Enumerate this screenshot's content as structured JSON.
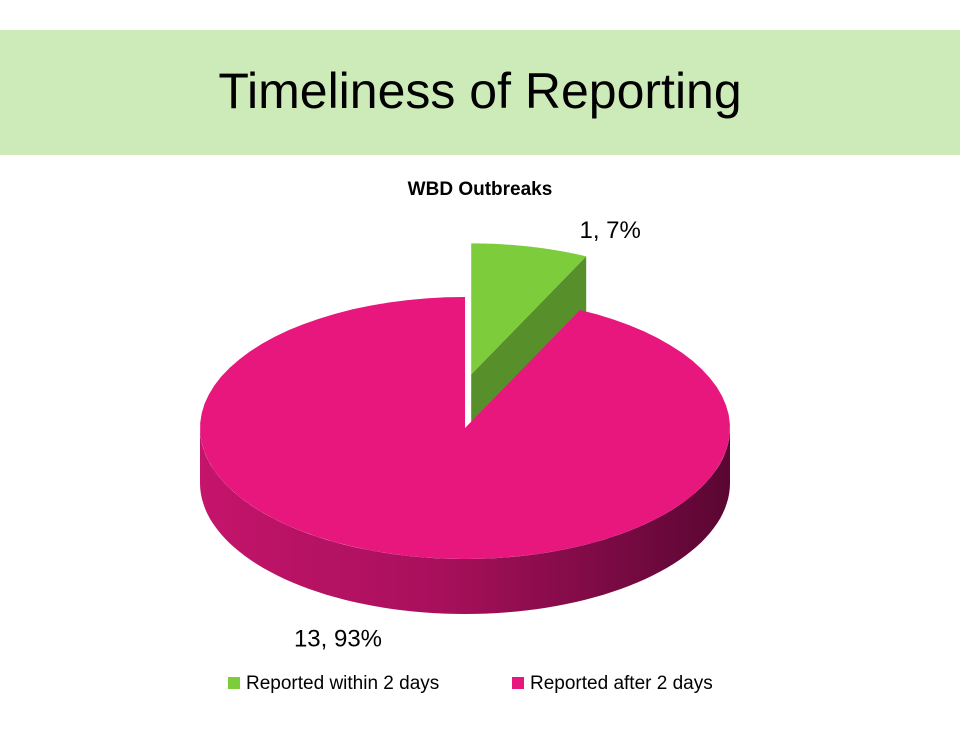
{
  "slide": {
    "title": "Timeliness of Reporting"
  },
  "chart_data": {
    "type": "pie",
    "title": "WBD Outbreaks",
    "categories": [
      "Reported within 2 days",
      "Reported after 2 days"
    ],
    "values": [
      1,
      13
    ],
    "value_labels": [
      "1, 7%",
      "13, 93%"
    ],
    "colors": [
      "#7ccc3c",
      "#e8177e"
    ],
    "legend": "bottom"
  }
}
